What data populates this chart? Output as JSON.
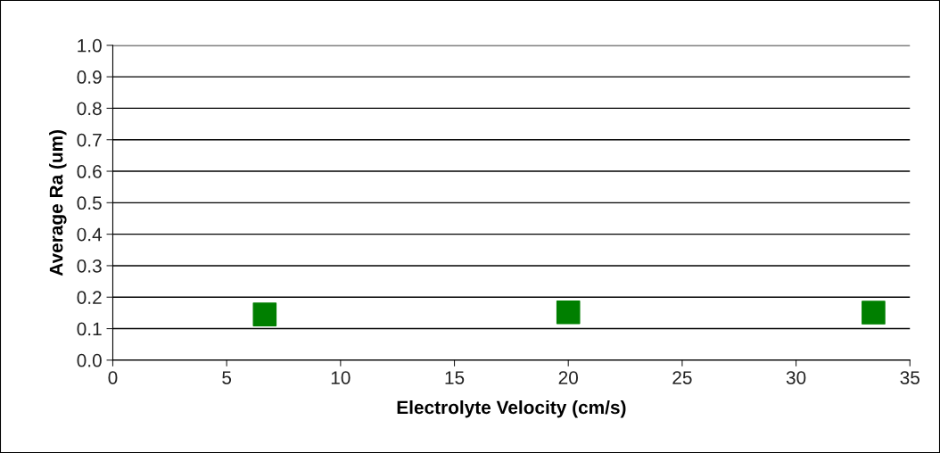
{
  "chart_data": {
    "type": "scatter",
    "xlabel": "Electrolyte Velocity (cm/s)",
    "ylabel": "Average Ra (um)",
    "x": [
      6.67,
      20.0,
      33.4
    ],
    "series": [
      {
        "color": "#007f00",
        "values": [
          0.145,
          0.152,
          0.151
        ]
      }
    ],
    "marker": "square",
    "grid": "y",
    "legend": false,
    "xlim": [
      0,
      35
    ],
    "xticks": [
      0,
      5,
      10,
      15,
      20,
      25,
      30,
      35
    ],
    "ylim": [
      0,
      1.0
    ],
    "yticks": [
      {
        "value": 0,
        "label": "0.0"
      },
      {
        "value": 0.1,
        "label": "0.1"
      },
      {
        "value": 0.2,
        "label": "0.2"
      },
      {
        "value": 0.3,
        "label": "0.3"
      },
      {
        "value": 0.4,
        "label": "0.4"
      },
      {
        "value": 0.5,
        "label": "0.5"
      },
      {
        "value": 0.6,
        "label": "0.6"
      },
      {
        "value": 0.7,
        "label": "0.7"
      },
      {
        "value": 0.8,
        "label": "0.8"
      },
      {
        "value": 0.9,
        "label": "0.9"
      },
      {
        "value": 1.0,
        "label": "1.0"
      }
    ]
  }
}
